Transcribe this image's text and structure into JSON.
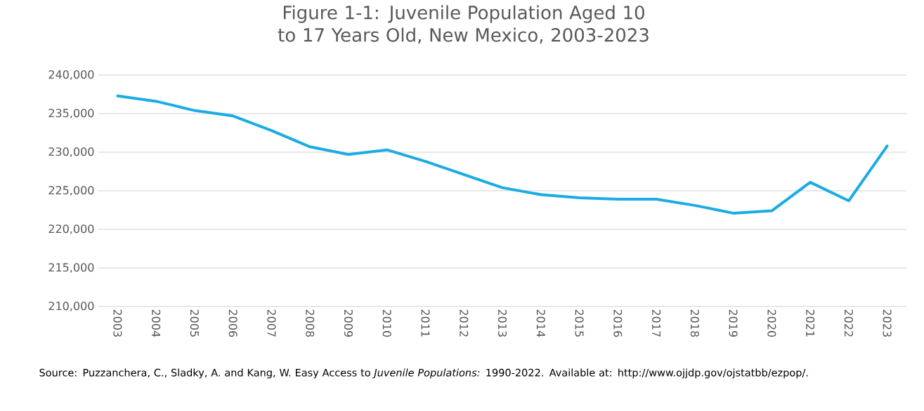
{
  "chart_data": {
    "type": "line",
    "title": "Figure 1-1: Juvenile Population Aged 10 to 17 Years Old, New Mexico, 2003-2023",
    "categories": [
      "2003",
      "2004",
      "2005",
      "2006",
      "2007",
      "2008",
      "2009",
      "2010",
      "2011",
      "2012",
      "2013",
      "2014",
      "2015",
      "2016",
      "2017",
      "2018",
      "2019",
      "2020",
      "2021",
      "2022",
      "2023"
    ],
    "values": [
      237300,
      236600,
      235400,
      234700,
      232800,
      230700,
      229700,
      230300,
      228800,
      227100,
      225400,
      224500,
      224100,
      223900,
      223900,
      223100,
      222100,
      222400,
      226100,
      223700,
      230800
    ],
    "color": "#1cace3",
    "ylim": [
      210000,
      240000
    ],
    "yticks": [
      {
        "value": 210000,
        "label": "210,000"
      },
      {
        "value": 215000,
        "label": "215,000"
      },
      {
        "value": 220000,
        "label": "220,000"
      },
      {
        "value": 225000,
        "label": "225,000"
      },
      {
        "value": 230000,
        "label": "230,000"
      },
      {
        "value": 235000,
        "label": "235,000"
      },
      {
        "value": 240000,
        "label": "240,000"
      }
    ],
    "grid": "y",
    "annotations": [
      "Source: Puzzanchera, C., Sladky, A. and Kang, W. Easy Access to *Juvenile Populations:* 1990-2022. Available at: http://www.ojjdp.gov/ojstatbb/ezpop/."
    ]
  }
}
